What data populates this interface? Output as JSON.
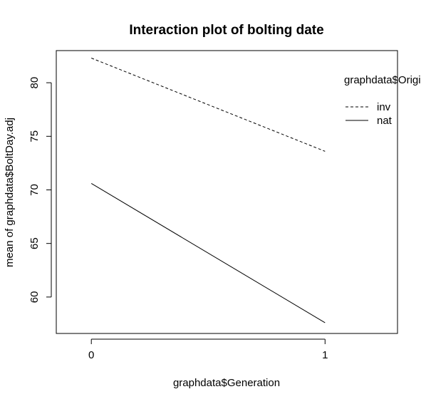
{
  "chart_data": {
    "type": "line",
    "title": "Interaction plot of bolting date",
    "xlabel": "graphdata$Generation",
    "ylabel": "mean of  graphdata$BoltDay.adj",
    "categories": [
      "0",
      "1"
    ],
    "x": [
      0,
      1
    ],
    "xlim": [
      -0.15,
      1.31
    ],
    "ylim": [
      56.6,
      83.0
    ],
    "yticks": [
      "60",
      "65",
      "70",
      "75",
      "80"
    ],
    "legend": {
      "title": "graphdata$Origi",
      "placement": "top-right"
    },
    "series": [
      {
        "name": "inv",
        "values": [
          82.3,
          73.6
        ],
        "linestyle": "dashed",
        "color": "#000000"
      },
      {
        "name": "nat",
        "values": [
          70.6,
          57.6
        ],
        "linestyle": "solid",
        "color": "#000000"
      }
    ]
  }
}
